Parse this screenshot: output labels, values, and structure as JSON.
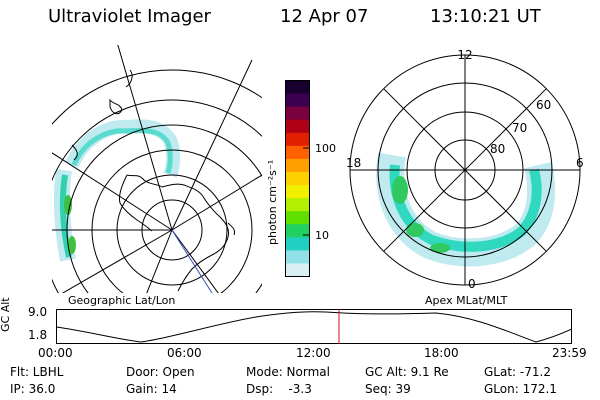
{
  "header": {
    "title": "Ultraviolet Imager",
    "date": "12 Apr 07",
    "time": "13:10:21 UT"
  },
  "colorbar": {
    "unit_label": "photon cm⁻²s⁻¹",
    "ticks": [
      "100",
      "10"
    ],
    "colors": [
      "#1a0030",
      "#3c0050",
      "#7a0040",
      "#b00018",
      "#e02000",
      "#ff6000",
      "#ffa000",
      "#ffd000",
      "#f0f000",
      "#b0f000",
      "#60e000",
      "#20d060",
      "#20d0c0",
      "#90e0e8",
      "#d8f0f4"
    ]
  },
  "left_panel": {
    "label": "Geographic Lat/Lon"
  },
  "right_panel": {
    "label": "Apex MLat/MLT",
    "mlt_labels": {
      "top": "12",
      "left": "18",
      "right": "6",
      "bottom": "0"
    },
    "lat_labels": [
      "60",
      "70",
      "80"
    ]
  },
  "altitude_plot": {
    "ylabel": "GC Alt",
    "y_ticks": [
      "9.0",
      "1.8"
    ],
    "x_ticks": [
      "00:00",
      "06:00",
      "12:00",
      "18:00",
      "23:59"
    ]
  },
  "info": {
    "row1": {
      "filter": "Flt: LBHL",
      "door": "Door: Open",
      "mode": "Mode: Normal",
      "gc_alt": "GC Alt: 9.1 Re",
      "glat": "GLat: -71.2"
    },
    "row2": {
      "ip": "IP: 36.0",
      "gain": "Gain: 14",
      "dsp": "Dsp:    -3.3",
      "seq": "Seq: 39",
      "glon": "GLon: 172.1"
    }
  }
}
